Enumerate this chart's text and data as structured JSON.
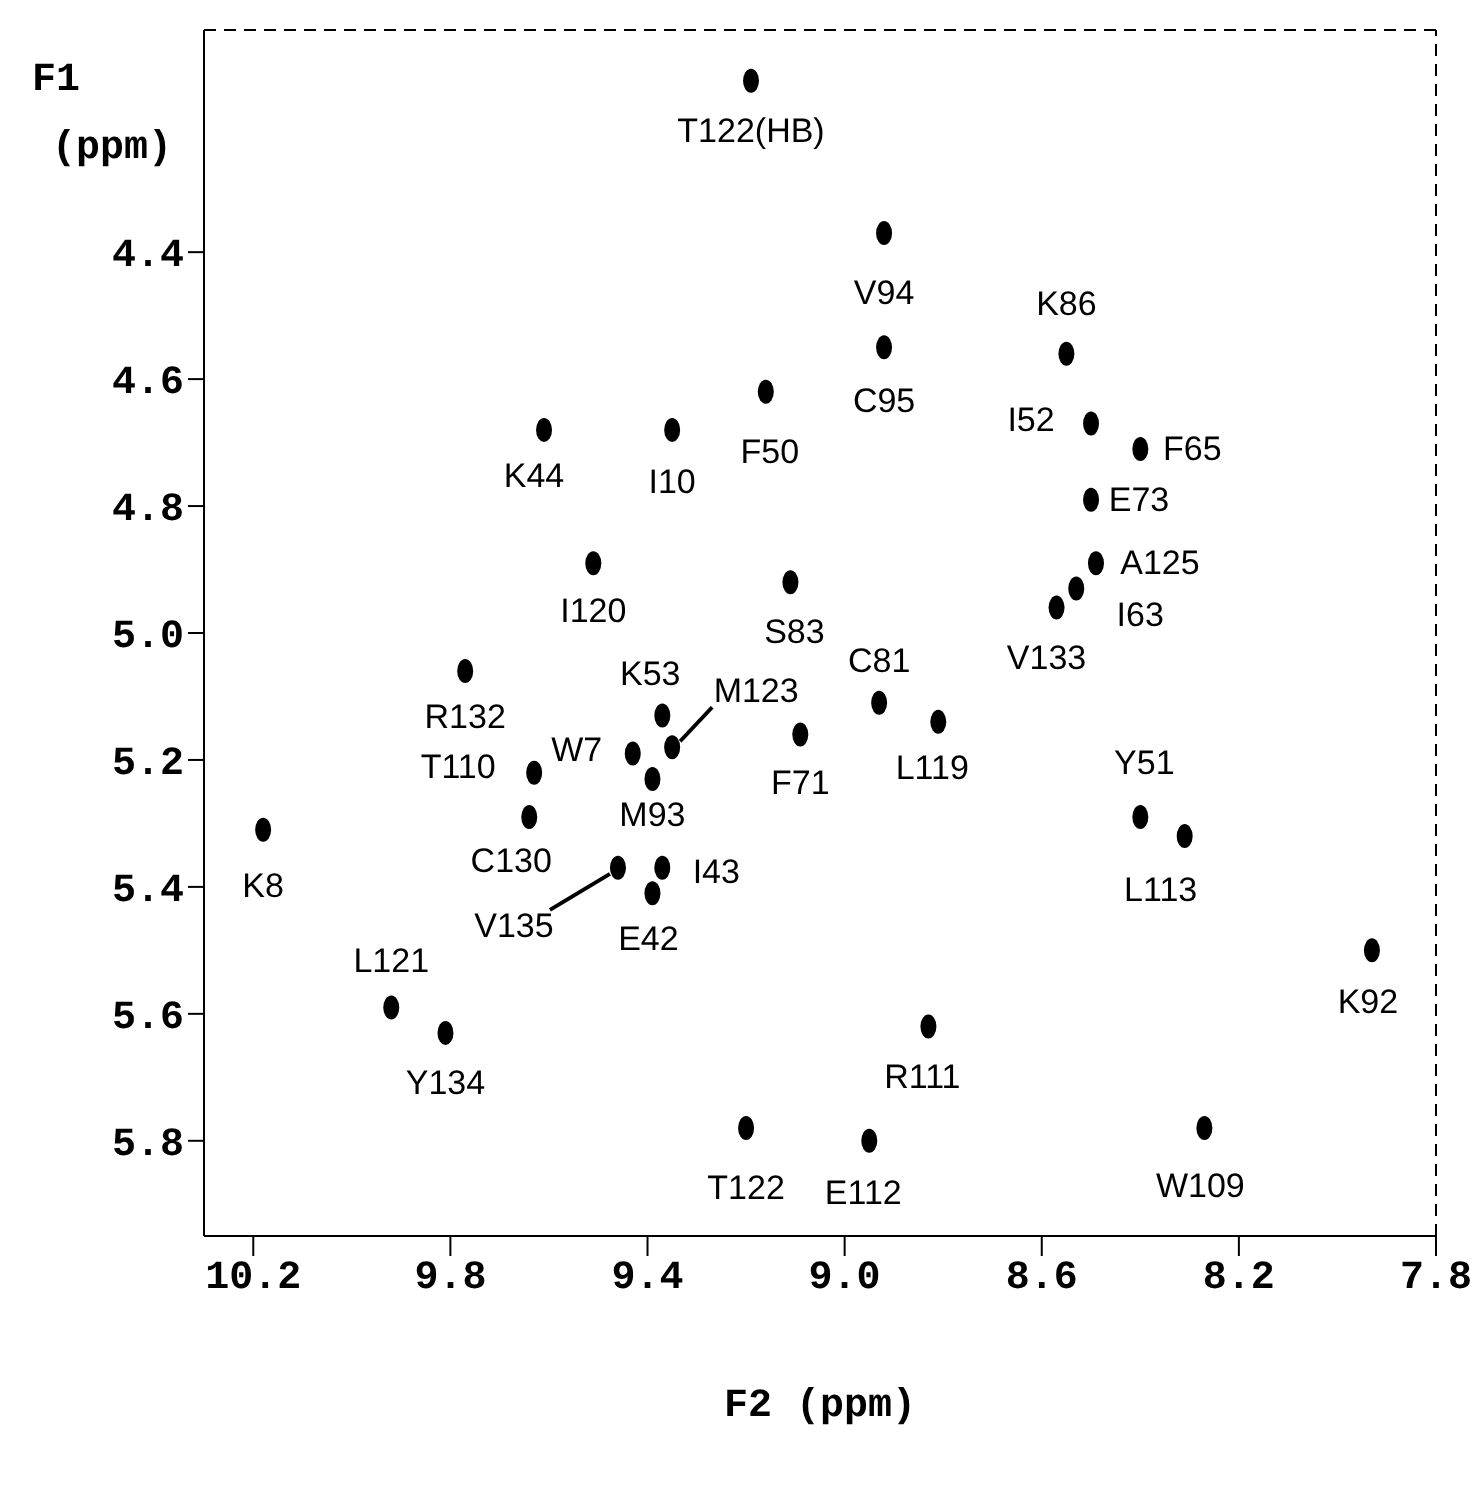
{
  "chart_data": {
    "type": "scatter",
    "xlabel": "F2 (ppm)",
    "ylabel": "F1 (ppm)",
    "xlim": [
      10.3,
      7.8
    ],
    "xticks": [
      10.2,
      9.8,
      9.4,
      {
        "value": 9,
        "label": "9.0"
      },
      8.6,
      8.2,
      7.8
    ],
    "ylim": [
      5.95,
      4.05
    ],
    "yticks": [
      4.4,
      4.6,
      4.8,
      {
        "value": 5,
        "label": "5.0"
      },
      5.2,
      5.4,
      5.6,
      5.8
    ],
    "grid": false,
    "legend": false,
    "marker": "circle",
    "series": [
      {
        "color": "#000000",
        "x": [
          9.19,
          8.92,
          8.92,
          8.55,
          8.5,
          8.4,
          8.5,
          8.49,
          8.53,
          8.57,
          9.61,
          9.35,
          9.16,
          9.51,
          9.11,
          9.77,
          9.37,
          9.35,
          9.43,
          9.39,
          9.09,
          9.63,
          9.64,
          10.18,
          9.46,
          9.37,
          9.39,
          9.92,
          9.81,
          9.2,
          8.93,
          8.81,
          8.4,
          8.31,
          7.93,
          8.83,
          8.95,
          8.27
        ],
        "values": [
          4.13,
          4.37,
          4.55,
          4.56,
          4.67,
          4.71,
          4.79,
          4.89,
          4.93,
          4.96,
          4.68,
          4.68,
          4.62,
          4.89,
          4.92,
          5.06,
          5.13,
          5.18,
          5.19,
          5.23,
          5.16,
          5.22,
          5.29,
          5.31,
          5.37,
          5.37,
          5.41,
          5.59,
          5.63,
          5.78,
          5.11,
          5.14,
          5.29,
          5.32,
          5.5,
          5.62,
          5.8,
          5.78
        ]
      }
    ],
    "annotations": [
      {
        "text": "T122(HB)",
        "x": 9.19,
        "y": 4.13
      },
      {
        "text": "V94",
        "x": 8.92,
        "y": 4.37
      },
      {
        "text": "C95",
        "x": 8.92,
        "y": 4.55
      },
      {
        "text": "K86",
        "x": 8.55,
        "y": 4.56
      },
      {
        "text": "I52",
        "x": 8.5,
        "y": 4.67
      },
      {
        "text": "F65",
        "x": 8.4,
        "y": 4.71
      },
      {
        "text": "E73",
        "x": 8.5,
        "y": 4.79
      },
      {
        "text": "A125",
        "x": 8.49,
        "y": 4.89
      },
      {
        "text": "I63",
        "x": 8.53,
        "y": 4.93
      },
      {
        "text": "V133",
        "x": 8.57,
        "y": 4.96
      },
      {
        "text": "K44",
        "x": 9.61,
        "y": 4.68
      },
      {
        "text": "I10",
        "x": 9.35,
        "y": 4.68
      },
      {
        "text": "F50",
        "x": 9.16,
        "y": 4.62
      },
      {
        "text": "I120",
        "x": 9.51,
        "y": 4.89
      },
      {
        "text": "S83",
        "x": 9.11,
        "y": 4.92
      },
      {
        "text": "R132",
        "x": 9.77,
        "y": 5.06
      },
      {
        "text": "K53",
        "x": 9.37,
        "y": 5.13
      },
      {
        "text": "M123",
        "x": 9.35,
        "y": 5.18
      },
      {
        "text": "W7",
        "x": 9.43,
        "y": 5.19
      },
      {
        "text": "M93",
        "x": 9.39,
        "y": 5.23
      },
      {
        "text": "F71",
        "x": 9.09,
        "y": 5.16
      },
      {
        "text": "T110",
        "x": 9.63,
        "y": 5.22
      },
      {
        "text": "C130",
        "x": 9.64,
        "y": 5.29
      },
      {
        "text": "K8",
        "x": 10.18,
        "y": 5.31
      },
      {
        "text": "V135",
        "x": 9.46,
        "y": 5.37
      },
      {
        "text": "I43",
        "x": 9.37,
        "y": 5.37
      },
      {
        "text": "E42",
        "x": 9.39,
        "y": 5.41
      },
      {
        "text": "L121",
        "x": 9.92,
        "y": 5.59
      },
      {
        "text": "Y134",
        "x": 9.81,
        "y": 5.63
      },
      {
        "text": "T122",
        "x": 9.2,
        "y": 5.78
      },
      {
        "text": "C81",
        "x": 8.93,
        "y": 5.11
      },
      {
        "text": "L119",
        "x": 8.81,
        "y": 5.14
      },
      {
        "text": "Y51",
        "x": 8.4,
        "y": 5.29
      },
      {
        "text": "L113",
        "x": 8.31,
        "y": 5.32
      },
      {
        "text": "K92",
        "x": 7.93,
        "y": 5.5
      },
      {
        "text": "R111",
        "x": 8.83,
        "y": 5.62
      },
      {
        "text": "E112",
        "x": 8.95,
        "y": 5.8
      },
      {
        "text": "W109",
        "x": 8.27,
        "y": 5.78
      }
    ]
  }
}
